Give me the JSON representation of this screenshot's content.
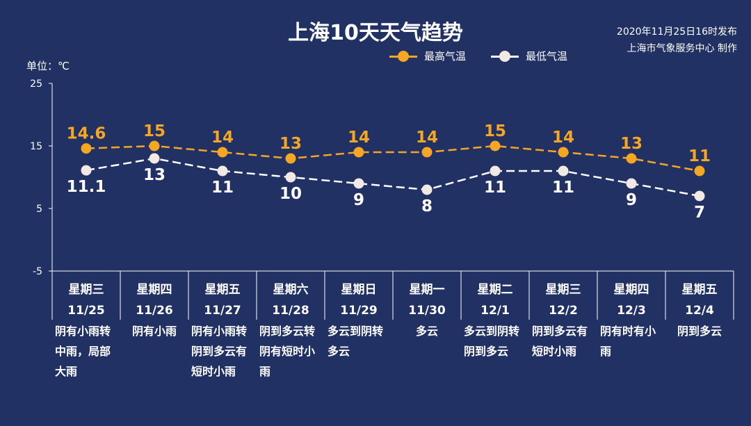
{
  "title": "上海10天天气趋势",
  "publish": {
    "time": "2020年11月25日16时发布",
    "source": "上海市气象服务中心 制作"
  },
  "unit_label": "单位：℃",
  "colors": {
    "background": "#213163",
    "high": "#F5A623",
    "low": "#FFFFFF",
    "low_marker": "#F2E9E4"
  },
  "chart_data": {
    "type": "line",
    "ylim": [
      -5,
      25
    ],
    "yticks": [
      25,
      15,
      5,
      -5
    ],
    "categories": [
      {
        "weekday": "星期三",
        "date": "11/25",
        "weather": "阴有小雨转中雨，局部大雨"
      },
      {
        "weekday": "星期四",
        "date": "11/26",
        "weather": "阴有小雨"
      },
      {
        "weekday": "星期五",
        "date": "11/27",
        "weather": "阴有小雨转阴到多云有短时小雨"
      },
      {
        "weekday": "星期六",
        "date": "11/28",
        "weather": "阴到多云转阴有短时小雨"
      },
      {
        "weekday": "星期日",
        "date": "11/29",
        "weather": "多云到阴转多云"
      },
      {
        "weekday": "星期一",
        "date": "11/30",
        "weather": "多云"
      },
      {
        "weekday": "星期二",
        "date": "12/1",
        "weather": "多云到阴转阴到多云"
      },
      {
        "weekday": "星期三",
        "date": "12/2",
        "weather": "阴到多云有短时小雨"
      },
      {
        "weekday": "星期四",
        "date": "12/3",
        "weather": "阴有时有小雨"
      },
      {
        "weekday": "星期五",
        "date": "12/4",
        "weather": "阴到多云"
      }
    ],
    "series": [
      {
        "name": "最高气温",
        "values": [
          14.6,
          15,
          14,
          13,
          14,
          14,
          15,
          14,
          13,
          11
        ]
      },
      {
        "name": "最低气温",
        "values": [
          11.1,
          13,
          11,
          10,
          9,
          8,
          11,
          11,
          9,
          7
        ]
      }
    ],
    "legend": "top-right",
    "grid": false
  }
}
